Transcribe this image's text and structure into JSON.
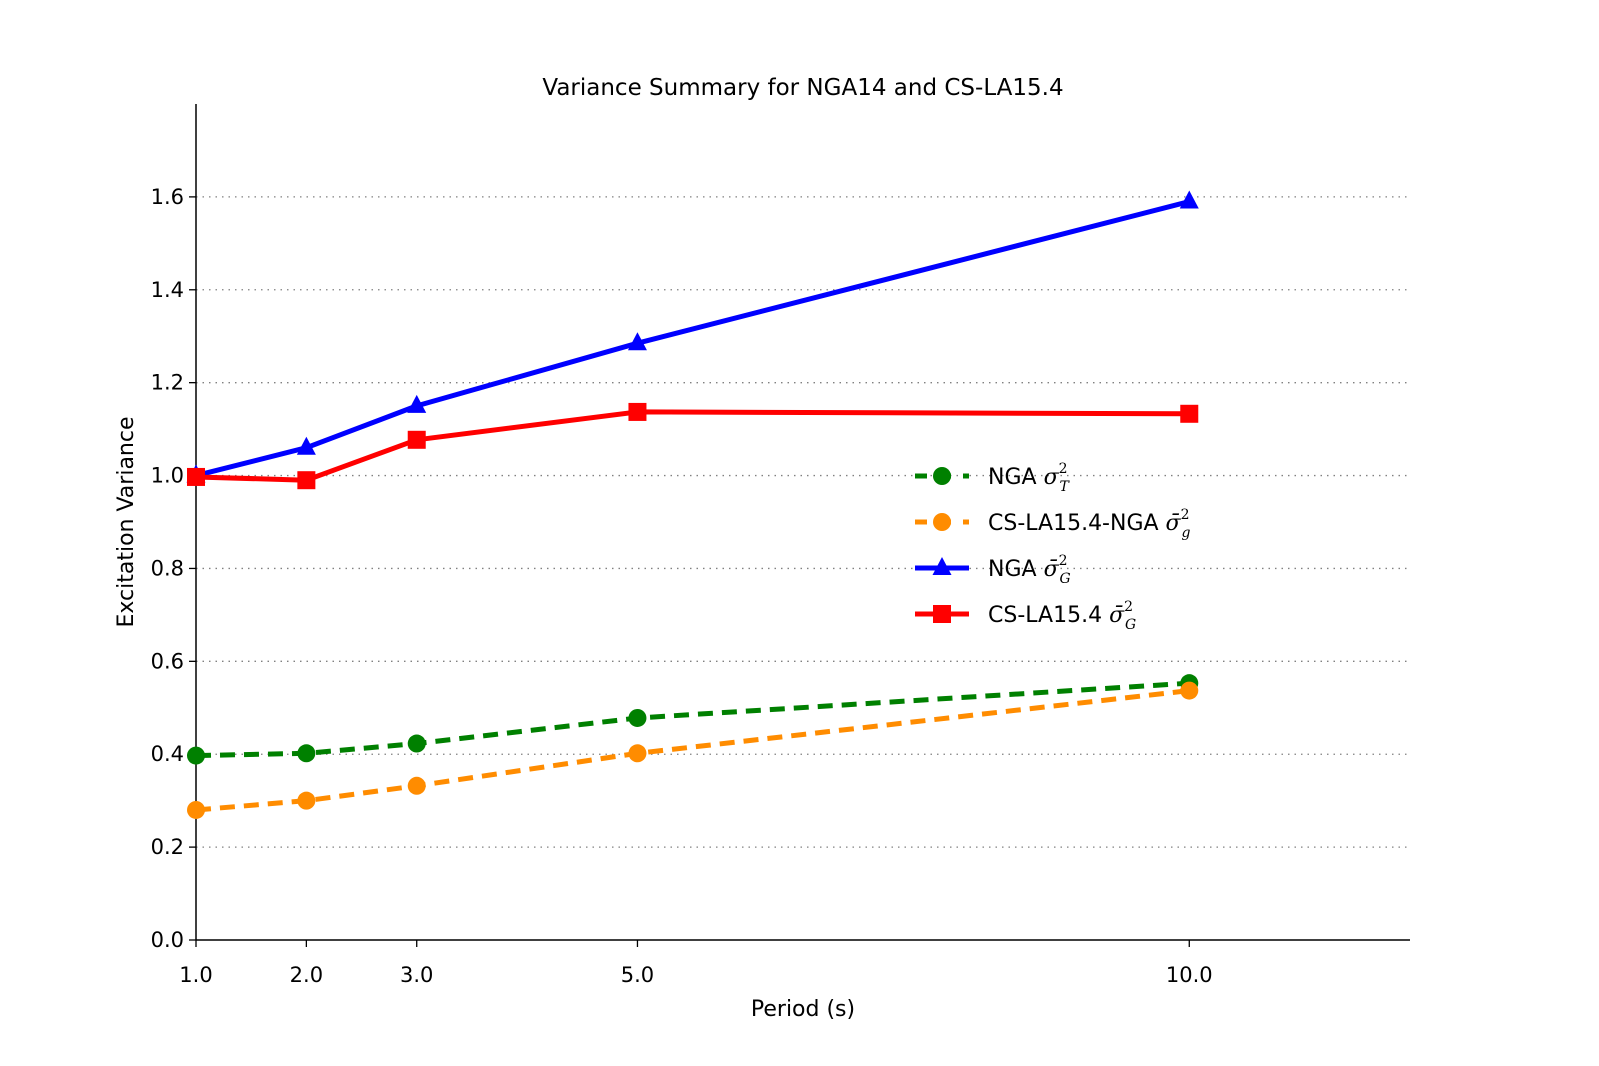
{
  "chart_data": {
    "type": "line",
    "title": "Variance Summary for NGA14 and CS-LA15.4",
    "xlabel": "Period (s)",
    "ylabel": "Excitation Variance",
    "xlim": [
      1.0,
      12.0
    ],
    "ylim": [
      0.0,
      1.8
    ],
    "x": [
      1.0,
      2.0,
      3.0,
      5.0,
      10.0
    ],
    "xticks": [
      1.0,
      2.0,
      3.0,
      5.0,
      10.0
    ],
    "xtick_labels": [
      "1.0",
      "2.0",
      "3.0",
      "5.0",
      "10.0"
    ],
    "yticks": [
      0.0,
      0.2,
      0.4,
      0.6,
      0.8,
      1.0,
      1.2,
      1.4,
      1.6
    ],
    "ytick_labels": [
      "0.0",
      "0.2",
      "0.4",
      "0.6",
      "0.8",
      "1.0",
      "1.2",
      "1.4",
      "1.6"
    ],
    "grid": "y-dotted",
    "legend_position": "center-right",
    "series": [
      {
        "name": "NGA σ²_T",
        "label_text": "NGA ",
        "math_base": "σ",
        "math_sup": "2",
        "math_sub": "T",
        "bar": false,
        "color": "#008000",
        "style": "dashed",
        "marker": "circle",
        "values": [
          0.397,
          0.402,
          0.423,
          0.478,
          0.553
        ]
      },
      {
        "name": "CS-LA15.4-NGA σ̄²_g",
        "label_text": "CS-LA15.4-NGA ",
        "math_base": "σ̄",
        "math_sup": "2",
        "math_sub": "g",
        "bar": true,
        "color": "#ff8c00",
        "style": "dashed",
        "marker": "circle",
        "values": [
          0.28,
          0.3,
          0.332,
          0.402,
          0.537
        ]
      },
      {
        "name": "NGA σ̄²_G",
        "label_text": "NGA ",
        "math_base": "σ̄",
        "math_sup": "2",
        "math_sub": "G",
        "bar": true,
        "color": "#0000ff",
        "style": "solid",
        "marker": "triangle",
        "values": [
          1.0,
          1.06,
          1.15,
          1.285,
          1.59
        ]
      },
      {
        "name": "CS-LA15.4 σ̄²_G",
        "label_text": "CS-LA15.4 ",
        "math_base": "σ̄",
        "math_sup": "2",
        "math_sub": "G",
        "bar": true,
        "color": "#ff0000",
        "style": "solid",
        "marker": "square",
        "values": [
          0.997,
          0.99,
          1.077,
          1.137,
          1.133
        ]
      }
    ]
  }
}
